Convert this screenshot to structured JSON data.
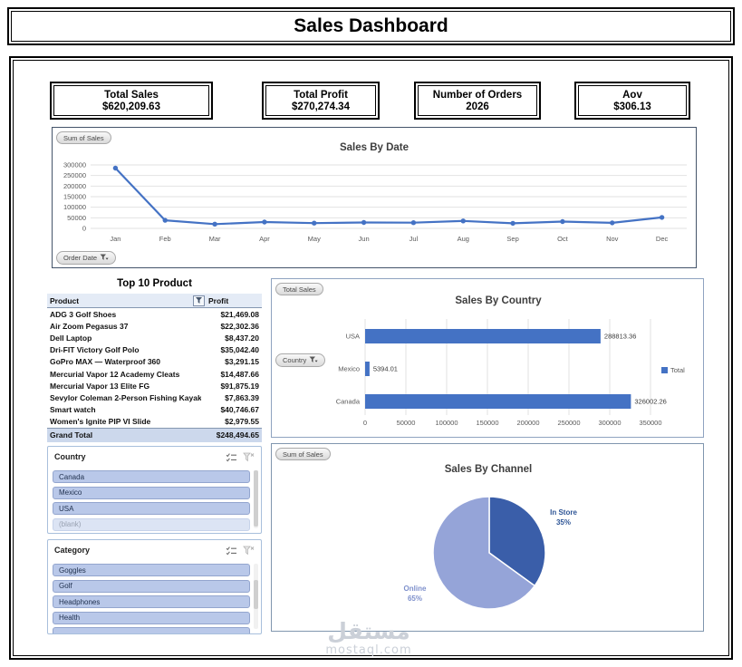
{
  "header": {
    "title": "Sales Dashboard"
  },
  "kpis": [
    {
      "label": "Total Sales",
      "value": "$620,209.63"
    },
    {
      "label": "Total Profit",
      "value": "$270,274.34"
    },
    {
      "label": "Number of Orders",
      "value": "2026"
    },
    {
      "label": "Aov",
      "value": "$306.13"
    }
  ],
  "chart_data": [
    {
      "id": "sales_by_date",
      "type": "line",
      "title": "Sales By Date",
      "field_button": "Sum of Sales",
      "axis_field_button": "Order Date",
      "categories": [
        "Jan",
        "Feb",
        "Mar",
        "Apr",
        "May",
        "Jun",
        "Jul",
        "Aug",
        "Sep",
        "Oct",
        "Nov",
        "Dec"
      ],
      "values": [
        285000,
        38000,
        20000,
        30000,
        25000,
        28000,
        27000,
        35000,
        24000,
        32000,
        26000,
        52000
      ],
      "ylim": [
        0,
        300000
      ],
      "yticks": [
        0,
        50000,
        100000,
        150000,
        200000,
        250000,
        300000
      ],
      "grid": true,
      "legend_position": "none",
      "line_color": "#4472C4"
    },
    {
      "id": "sales_by_country",
      "type": "bar",
      "orientation": "horizontal",
      "title": "Sales By Country",
      "field_button": "Total Sales",
      "axis_field_button": "Country",
      "categories": [
        "USA",
        "Mexico",
        "Canada"
      ],
      "values": [
        288813.36,
        5394.01,
        326002.26
      ],
      "data_labels": [
        "288813.36",
        "5394.01",
        "326002.26"
      ],
      "xlim": [
        0,
        350000
      ],
      "xticks": [
        0,
        50000,
        100000,
        150000,
        200000,
        250000,
        300000,
        350000
      ],
      "grid": true,
      "legend": [
        "Total"
      ],
      "legend_position": "right",
      "bar_color": "#4472C4"
    },
    {
      "id": "sales_by_channel",
      "type": "pie",
      "title": "Sales By Channel",
      "field_button": "Sum of Sales",
      "slices": [
        {
          "label": "In Store",
          "pct": 35,
          "color": "#3A5EA9",
          "label_color": "#2E5596"
        },
        {
          "label": "Online",
          "pct": 65,
          "color": "#95A4D8",
          "label_color": "#7E90CC"
        }
      ]
    }
  ],
  "top_products": {
    "title": "Top 10 Product",
    "columns": [
      "Product",
      "Profit"
    ],
    "rows": [
      [
        "ADG 3 Golf Shoes",
        "$21,469.08"
      ],
      [
        "Air Zoom Pegasus 37",
        "$22,302.36"
      ],
      [
        "Dell Laptop",
        "$8,437.20"
      ],
      [
        "Dri-FIT Victory Golf Polo",
        "$35,042.40"
      ],
      [
        "GoPro MAX — Waterproof 360",
        "$3,291.15"
      ],
      [
        "Mercurial Vapor 12 Academy Cleats",
        "$14,487.66"
      ],
      [
        "Mercurial Vapor 13 Elite FG",
        "$91,875.19"
      ],
      [
        "Sevylor Coleman 2-Person Fishing Kayak",
        "$7,863.39"
      ],
      [
        "Smart watch",
        "$40,746.67"
      ],
      [
        "Women's Ignite PIP VI Slide",
        "$2,979.55"
      ]
    ],
    "grand_total": {
      "label": "Grand Total",
      "value": "$248,494.65"
    }
  },
  "slicers": [
    {
      "title": "Country",
      "items": [
        {
          "label": "Canada",
          "state": "selected"
        },
        {
          "label": "Mexico",
          "state": "selected"
        },
        {
          "label": "USA",
          "state": "selected"
        },
        {
          "label": "(blank)",
          "state": "unselected"
        }
      ]
    },
    {
      "title": "Category",
      "items": [
        {
          "label": "Goggles",
          "state": "selected"
        },
        {
          "label": "Golf",
          "state": "selected"
        },
        {
          "label": "Headphones",
          "state": "selected"
        },
        {
          "label": "Health",
          "state": "selected"
        },
        {
          "label": "",
          "state": "partial"
        }
      ]
    }
  ],
  "watermark": {
    "line1": "مستقل",
    "line2": "mostaql.com"
  },
  "colors": {
    "accent": "#4472C4",
    "pie_dark": "#3A5EA9",
    "pie_light": "#95A4D8",
    "slicer_item_fill": "#B9C8E9",
    "panel_border": "#8496B0"
  }
}
